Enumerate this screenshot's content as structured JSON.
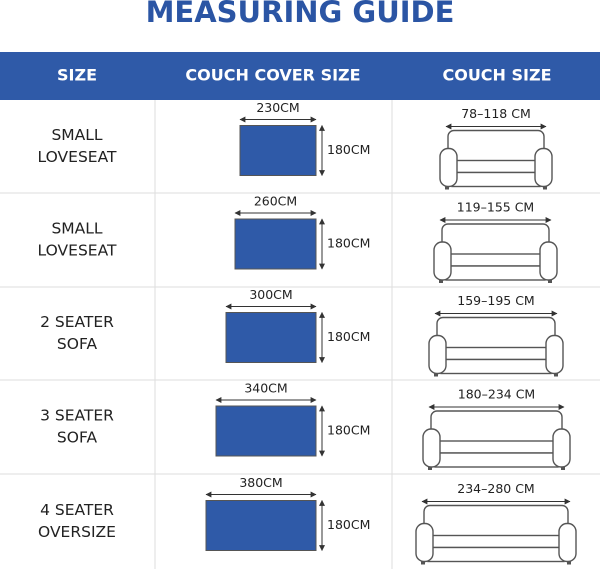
{
  "title": "MEASURING GUIDE",
  "table": {
    "headers": [
      "SIZE",
      "COUCH COVER SIZE",
      "COUCH SIZE"
    ],
    "rows": [
      {
        "size": [
          "SMALL",
          "LOVESEAT"
        ],
        "cover_width": "230CM",
        "cover_height": "180CM",
        "couch_size": "78–118 CM"
      },
      {
        "size": [
          "SMALL",
          "LOVESEAT"
        ],
        "cover_width": "260CM",
        "cover_height": "180CM",
        "couch_size": "119–155 CM"
      },
      {
        "size": [
          "2 SEATER",
          "SOFA"
        ],
        "cover_width": "300CM",
        "cover_height": "180CM",
        "couch_size": "159–195 CM"
      },
      {
        "size": [
          "3 SEATER",
          "SOFA"
        ],
        "cover_width": "340CM",
        "cover_height": "180CM",
        "couch_size": "180–234 CM"
      },
      {
        "size": [
          "4 SEATER",
          "OVERSIZE"
        ],
        "cover_width": "380CM",
        "cover_height": "180CM",
        "couch_size": "234–280 CM"
      }
    ]
  }
}
